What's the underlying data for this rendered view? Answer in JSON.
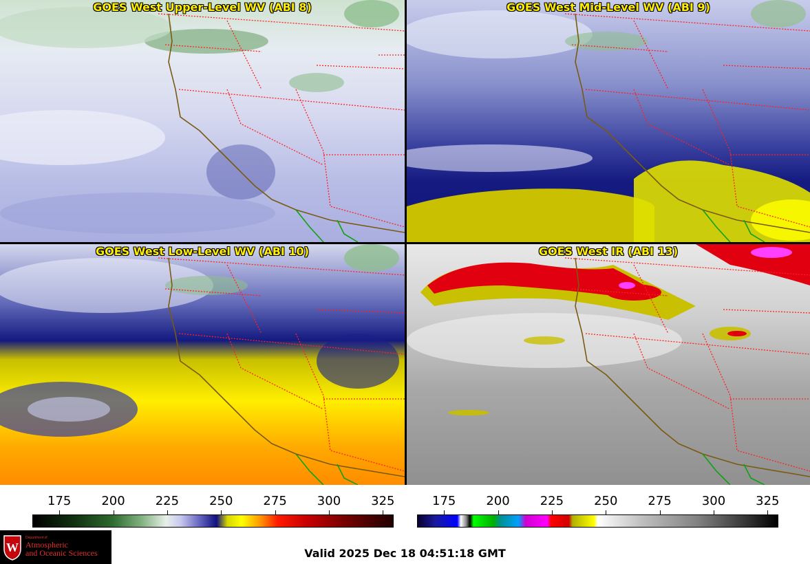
{
  "panels": [
    {
      "title": "GOES West Upper-Level WV (ABI 8)",
      "style": "upper"
    },
    {
      "title": "GOES West Mid-Level WV (ABI 9)",
      "style": "mid"
    },
    {
      "title": "GOES West Low-Level WV (ABI 10)",
      "style": "low"
    },
    {
      "title": "GOES West IR (ABI 13)",
      "style": "ir"
    }
  ],
  "colorbars": {
    "wv": {
      "ticks": [
        "175",
        "200",
        "225",
        "250",
        "275",
        "300",
        "325"
      ],
      "min": 162.5,
      "max": 330
    },
    "ir": {
      "ticks": [
        "175",
        "200",
        "225",
        "250",
        "275",
        "300",
        "325"
      ],
      "min": 162.5,
      "max": 330
    }
  },
  "colors": {
    "state_borders": "#ff2020",
    "coastline": "#7a5a10",
    "mexico_coast": "#10a010",
    "title_text": "#ffee00"
  },
  "logo": {
    "dept": "Department of",
    "line1": "Atmospheric",
    "line2": "and Oceanic Sciences"
  },
  "footer": {
    "valid_text": "Valid 2025 Dec 18 04:51:18 GMT"
  }
}
